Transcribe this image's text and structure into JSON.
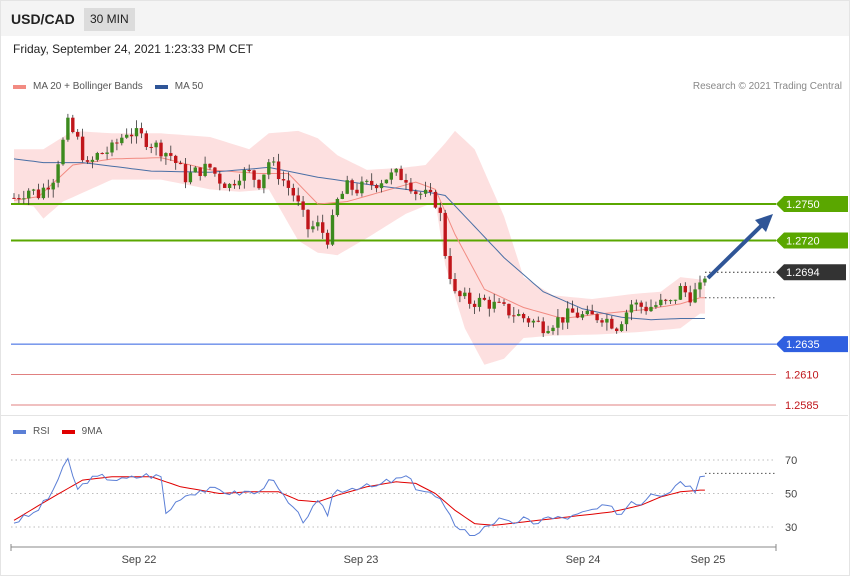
{
  "header": {
    "symbol": "USD/CAD",
    "timeframe": "30 MIN"
  },
  "timestamp": "Friday, September 24, 2021 1:23:33 PM CET",
  "credit": "Research © 2021 Trading Central",
  "legend_main": [
    {
      "label": "MA 20 + Bollinger Bands",
      "color": "#f28b82"
    },
    {
      "label": "MA 50",
      "color": "#2f5597"
    }
  ],
  "legend_rsi": [
    {
      "label": "RSI",
      "color": "#5b7fd6"
    },
    {
      "label": "9MA",
      "color": "#e00000"
    }
  ],
  "colors": {
    "up": "#3c8a1e",
    "down": "#c0161b",
    "band": "#fde0e0",
    "ma20": "#f28b82",
    "ma50": "#4a6fa5",
    "resistance": "#5aa700",
    "support": "#2f5fe0",
    "target": "#e08080",
    "arrow": "#2f5597",
    "current": "#333333"
  },
  "chart_data": {
    "type": "candlestick",
    "symbol": "USD/CAD",
    "timeframe": "30 MIN",
    "ylim": [
      1.2575,
      1.2842
    ],
    "x_ticks": [
      "Sep 22",
      "Sep 23",
      "Sep 24",
      "Sep 25"
    ],
    "levels": [
      {
        "value": 1.275,
        "label": "1.2750",
        "kind": "resistance"
      },
      {
        "value": 1.272,
        "label": "1.2720",
        "kind": "resistance"
      },
      {
        "value": 1.2694,
        "label": "1.2694",
        "kind": "current"
      },
      {
        "value": 1.2635,
        "label": "1.2635",
        "kind": "support"
      },
      {
        "value": 1.261,
        "label": "1.2610",
        "kind": "target"
      },
      {
        "value": 1.2585,
        "label": "1.2585",
        "kind": "target"
      }
    ],
    "anchors": [
      [
        0,
        1.2755
      ],
      [
        3,
        1.2762
      ],
      [
        5,
        1.2758
      ],
      [
        8,
        1.2772
      ],
      [
        11,
        1.2815
      ],
      [
        13,
        1.2802
      ],
      [
        15,
        1.278
      ],
      [
        17,
        1.279
      ],
      [
        20,
        1.2795
      ],
      [
        23,
        1.281
      ],
      [
        26,
        1.2805
      ],
      [
        28,
        1.28
      ],
      [
        30,
        1.2795
      ],
      [
        32,
        1.279
      ],
      [
        35,
        1.2772
      ],
      [
        38,
        1.2778
      ],
      [
        40,
        1.278
      ],
      [
        42,
        1.277
      ],
      [
        44,
        1.2765
      ],
      [
        46,
        1.2775
      ],
      [
        48,
        1.2775
      ],
      [
        50,
        1.2768
      ],
      [
        52,
        1.2785
      ],
      [
        54,
        1.2775
      ],
      [
        57,
        1.2758
      ],
      [
        60,
        1.273
      ],
      [
        62,
        1.2732
      ],
      [
        64,
        1.2722
      ],
      [
        65,
        1.2735
      ],
      [
        66,
        1.2752
      ],
      [
        68,
        1.2764
      ],
      [
        70,
        1.2762
      ],
      [
        72,
        1.2765
      ],
      [
        74,
        1.2768
      ],
      [
        76,
        1.2772
      ],
      [
        78,
        1.2774
      ],
      [
        80,
        1.2772
      ],
      [
        82,
        1.276
      ],
      [
        84,
        1.2757
      ],
      [
        86,
        1.2752
      ],
      [
        87,
        1.274
      ],
      [
        88,
        1.271
      ],
      [
        90,
        1.2675
      ],
      [
        93,
        1.267
      ],
      [
        96,
        1.267
      ],
      [
        99,
        1.2665
      ],
      [
        102,
        1.266
      ],
      [
        105,
        1.2655
      ],
      [
        108,
        1.265
      ],
      [
        111,
        1.2655
      ],
      [
        114,
        1.266
      ],
      [
        117,
        1.2657
      ],
      [
        120,
        1.2658
      ],
      [
        123,
        1.265
      ],
      [
        126,
        1.2668
      ],
      [
        129,
        1.2665
      ],
      [
        132,
        1.2668
      ],
      [
        134,
        1.2668
      ],
      [
        136,
        1.268
      ],
      [
        138,
        1.2675
      ],
      [
        140,
        1.268
      ],
      [
        141,
        1.2692
      ]
    ],
    "ma20_anchors": [
      [
        0,
        1.2753
      ],
      [
        5,
        1.2756
      ],
      [
        12,
        1.2782
      ],
      [
        20,
        1.2787
      ],
      [
        30,
        1.2788
      ],
      [
        40,
        1.2778
      ],
      [
        50,
        1.2775
      ],
      [
        56,
        1.2775
      ],
      [
        62,
        1.275
      ],
      [
        68,
        1.2752
      ],
      [
        75,
        1.276
      ],
      [
        82,
        1.2768
      ],
      [
        86,
        1.2762
      ],
      [
        90,
        1.2725
      ],
      [
        96,
        1.268
      ],
      [
        104,
        1.2665
      ],
      [
        112,
        1.2656
      ],
      [
        120,
        1.266
      ],
      [
        128,
        1.2663
      ],
      [
        136,
        1.2668
      ],
      [
        140,
        1.2673
      ]
    ],
    "band_upper_anchors": [
      [
        0,
        1.2795
      ],
      [
        6,
        1.2795
      ],
      [
        12,
        1.281
      ],
      [
        20,
        1.2808
      ],
      [
        30,
        1.2808
      ],
      [
        40,
        1.2805
      ],
      [
        48,
        1.2795
      ],
      [
        52,
        1.2808
      ],
      [
        58,
        1.281
      ],
      [
        62,
        1.2804
      ],
      [
        66,
        1.279
      ],
      [
        72,
        1.2778
      ],
      [
        80,
        1.278
      ],
      [
        84,
        1.2782
      ],
      [
        88,
        1.28
      ],
      [
        90,
        1.281
      ],
      [
        94,
        1.2795
      ],
      [
        100,
        1.274
      ],
      [
        104,
        1.269
      ],
      [
        110,
        1.2675
      ],
      [
        118,
        1.2672
      ],
      [
        126,
        1.2676
      ],
      [
        132,
        1.2678
      ],
      [
        136,
        1.269
      ],
      [
        140,
        1.2688
      ]
    ],
    "band_lower_anchors": [
      [
        0,
        1.275
      ],
      [
        4,
        1.2748
      ],
      [
        6,
        1.2738
      ],
      [
        10,
        1.2752
      ],
      [
        20,
        1.277
      ],
      [
        30,
        1.277
      ],
      [
        40,
        1.2762
      ],
      [
        46,
        1.276
      ],
      [
        52,
        1.2762
      ],
      [
        58,
        1.272
      ],
      [
        62,
        1.271
      ],
      [
        66,
        1.2708
      ],
      [
        72,
        1.2722
      ],
      [
        80,
        1.2742
      ],
      [
        86,
        1.2752
      ],
      [
        88,
        1.27
      ],
      [
        92,
        1.2648
      ],
      [
        96,
        1.2618
      ],
      [
        100,
        1.2623
      ],
      [
        104,
        1.264
      ],
      [
        110,
        1.2642
      ],
      [
        120,
        1.2643
      ],
      [
        128,
        1.2645
      ],
      [
        136,
        1.2648
      ],
      [
        140,
        1.266
      ]
    ],
    "ma50_anchors": [
      [
        0,
        1.2787
      ],
      [
        6,
        1.2784
      ],
      [
        14,
        1.2784
      ],
      [
        28,
        1.2777
      ],
      [
        40,
        1.2776
      ],
      [
        52,
        1.278
      ],
      [
        62,
        1.2772
      ],
      [
        74,
        1.2765
      ],
      [
        84,
        1.276
      ],
      [
        88,
        1.2757
      ],
      [
        92,
        1.274
      ],
      [
        100,
        1.2706
      ],
      [
        108,
        1.2678
      ],
      [
        116,
        1.2664
      ],
      [
        124,
        1.2657
      ],
      [
        130,
        1.2655
      ],
      [
        136,
        1.2656
      ],
      [
        140,
        1.2656
      ]
    ],
    "rsi_ylim": [
      15,
      75
    ],
    "rsi_ticks": [
      70,
      50,
      30
    ],
    "rsi_anchors": [
      [
        0,
        33
      ],
      [
        4,
        38
      ],
      [
        7,
        47
      ],
      [
        11,
        70
      ],
      [
        13,
        52
      ],
      [
        15,
        58
      ],
      [
        18,
        60
      ],
      [
        22,
        58
      ],
      [
        27,
        61
      ],
      [
        30,
        60
      ],
      [
        31,
        38
      ],
      [
        34,
        48
      ],
      [
        38,
        52
      ],
      [
        42,
        52
      ],
      [
        45,
        50
      ],
      [
        48,
        51
      ],
      [
        50,
        50
      ],
      [
        52,
        60
      ],
      [
        54,
        52
      ],
      [
        57,
        40
      ],
      [
        59,
        34
      ],
      [
        62,
        44
      ],
      [
        64,
        38
      ],
      [
        65,
        49
      ],
      [
        66,
        52
      ],
      [
        70,
        54
      ],
      [
        74,
        54
      ],
      [
        76,
        57
      ],
      [
        78,
        58
      ],
      [
        80,
        60
      ],
      [
        82,
        54
      ],
      [
        85,
        50
      ],
      [
        87,
        46
      ],
      [
        88,
        40
      ],
      [
        90,
        32
      ],
      [
        92,
        28
      ],
      [
        94,
        24
      ],
      [
        96,
        31
      ],
      [
        99,
        34
      ],
      [
        101,
        32
      ],
      [
        104,
        35
      ],
      [
        106,
        31
      ],
      [
        108,
        36
      ],
      [
        110,
        35
      ],
      [
        114,
        36
      ],
      [
        118,
        40
      ],
      [
        121,
        42
      ],
      [
        124,
        38
      ],
      [
        126,
        46
      ],
      [
        128,
        44
      ],
      [
        130,
        51
      ],
      [
        132,
        50
      ],
      [
        134,
        52
      ],
      [
        136,
        58
      ],
      [
        138,
        54
      ],
      [
        139,
        52
      ],
      [
        140,
        62
      ]
    ],
    "rsi_ma_anchors": [
      [
        0,
        34
      ],
      [
        8,
        48
      ],
      [
        14,
        58
      ],
      [
        20,
        60
      ],
      [
        28,
        60
      ],
      [
        34,
        54
      ],
      [
        42,
        50
      ],
      [
        48,
        51
      ],
      [
        54,
        51
      ],
      [
        58,
        46
      ],
      [
        62,
        45
      ],
      [
        66,
        49
      ],
      [
        72,
        54
      ],
      [
        78,
        57
      ],
      [
        82,
        56
      ],
      [
        86,
        50
      ],
      [
        90,
        40
      ],
      [
        94,
        32
      ],
      [
        98,
        31
      ],
      [
        104,
        33
      ],
      [
        110,
        35
      ],
      [
        116,
        37
      ],
      [
        122,
        39
      ],
      [
        128,
        43
      ],
      [
        132,
        48
      ],
      [
        136,
        51
      ],
      [
        140,
        52
      ]
    ]
  }
}
